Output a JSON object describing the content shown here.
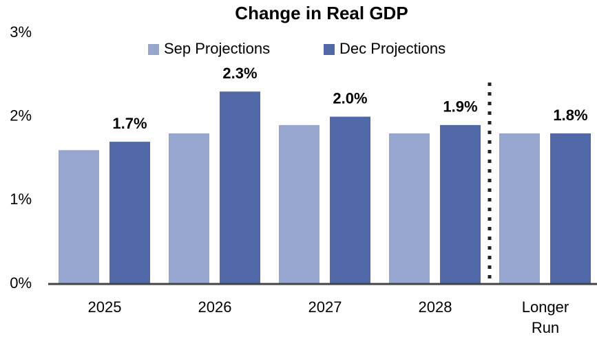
{
  "chart_data": {
    "type": "bar",
    "title": "Change in Real GDP",
    "categories": [
      "2025",
      "2026",
      "2027",
      "2028",
      "Longer Run"
    ],
    "series": [
      {
        "name": "Sep Projections",
        "color": "#97a6cf",
        "values": [
          1.6,
          1.8,
          1.9,
          1.8,
          1.8
        ]
      },
      {
        "name": "Dec Projections",
        "color": "#5067a8",
        "values": [
          1.7,
          2.3,
          2.0,
          1.9,
          1.8
        ],
        "value_labels": [
          "1.7%",
          "2.3%",
          "2.0%",
          "1.9%",
          "1.8%"
        ]
      }
    ],
    "ylim": [
      0,
      3
    ],
    "yticks": [
      {
        "value": 0,
        "label": "0%"
      },
      {
        "value": 1,
        "label": "1%"
      },
      {
        "value": 2,
        "label": "2%"
      },
      {
        "value": 3,
        "label": "3%"
      }
    ],
    "legend": "top"
  }
}
